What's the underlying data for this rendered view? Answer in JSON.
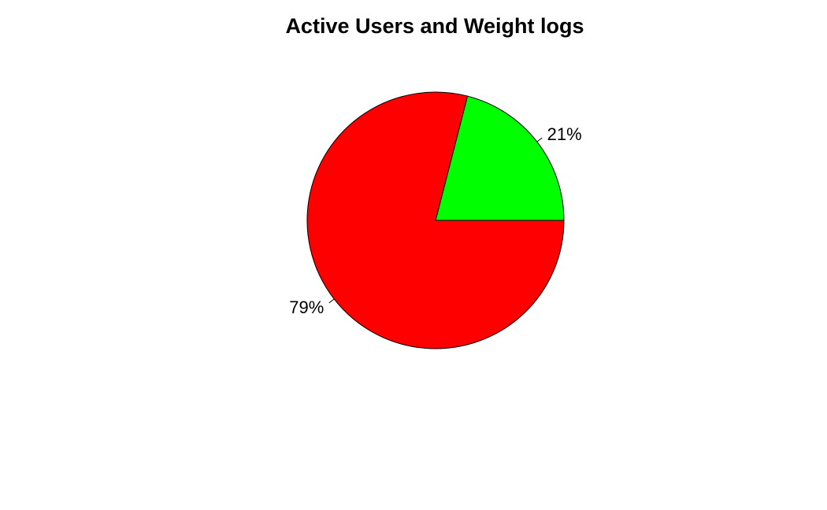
{
  "chart_data": {
    "type": "pie",
    "title": "Active Users and Weight logs",
    "slices": [
      {
        "label": "21%",
        "value": 21,
        "color": "#00ff00"
      },
      {
        "label": "79%",
        "value": 79,
        "color": "#ff0000"
      }
    ]
  }
}
